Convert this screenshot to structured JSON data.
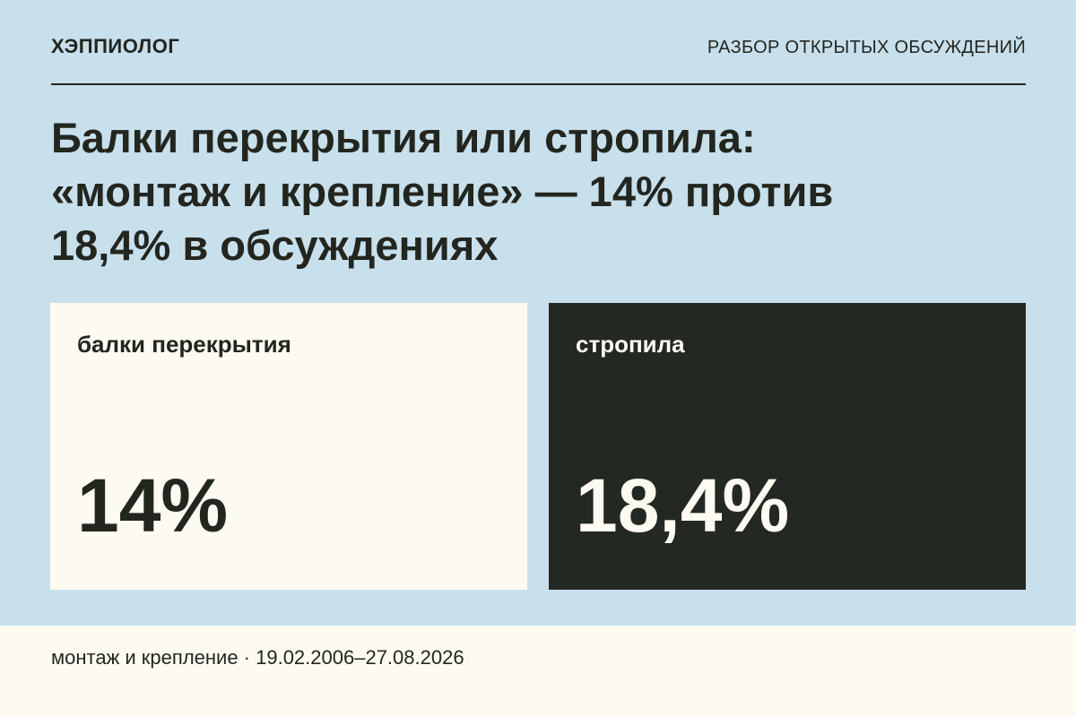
{
  "header": {
    "brand": "ХЭППИОЛОГ",
    "section": "РАЗБОР ОТКРЫТЫХ ОБСУЖДЕНИЙ"
  },
  "title": {
    "line1": "Балки перекрытия или стропила:",
    "line2": "«монтаж и крепление» — 14% против",
    "line3": "18,4% в обсуждениях"
  },
  "cards": [
    {
      "label": "балки перекрытия",
      "value": "14%",
      "share": 0.14
    },
    {
      "label": "стропила",
      "value": "18,4%",
      "share": 0.184
    }
  ],
  "footer": {
    "text": "монтаж и крепление · 19.02.2006–27.08.2026"
  },
  "colors": {
    "background": "#c8dfec",
    "light_card": "#fdfaf2",
    "dark_card": "#242822",
    "text_dark": "#23261f",
    "text_light": "#fdfaf2"
  }
}
